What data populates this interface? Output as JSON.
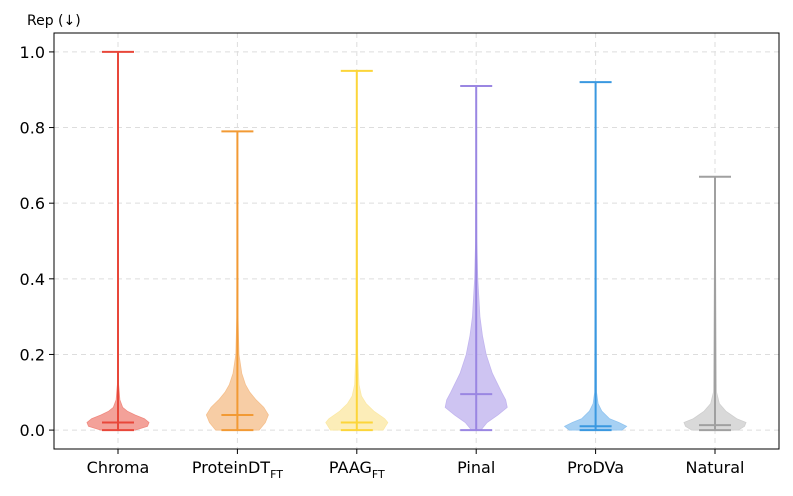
{
  "chart_data": {
    "type": "violin",
    "title": "",
    "ylabel": "Rep (↓)",
    "xlabel": "",
    "ylim": [
      -0.05,
      1.05
    ],
    "yticks": [
      0.0,
      0.2,
      0.4,
      0.6,
      0.8,
      1.0
    ],
    "ytick_labels": [
      "0.0",
      "0.2",
      "0.4",
      "0.6",
      "0.8",
      "1.0"
    ],
    "grid": true,
    "categories": [
      {
        "base": "Chroma",
        "sub": ""
      },
      {
        "base": "ProteinDT",
        "sub": "FT"
      },
      {
        "base": "PAAG",
        "sub": "FT"
      },
      {
        "base": "Pinal",
        "sub": ""
      },
      {
        "base": "ProDVa",
        "sub": ""
      },
      {
        "base": "Natural",
        "sub": ""
      }
    ],
    "series": [
      {
        "name": "Chroma",
        "color": "#e8473a",
        "fill": "#f08a80",
        "min": 0.0,
        "max": 1.0,
        "median": 0.02,
        "profile": [
          [
            0.0,
            0.55
          ],
          [
            0.01,
            0.95
          ],
          [
            0.02,
            1.0
          ],
          [
            0.03,
            0.85
          ],
          [
            0.04,
            0.55
          ],
          [
            0.05,
            0.3
          ],
          [
            0.06,
            0.15
          ],
          [
            0.08,
            0.06
          ],
          [
            0.12,
            0.02
          ],
          [
            1.0,
            0.0
          ]
        ]
      },
      {
        "name": "ProteinDT_FT",
        "color": "#f29a34",
        "fill": "#f5c08e",
        "min": 0.0,
        "max": 0.79,
        "median": 0.04,
        "profile": [
          [
            0.0,
            0.7
          ],
          [
            0.02,
            0.9
          ],
          [
            0.04,
            1.0
          ],
          [
            0.06,
            0.85
          ],
          [
            0.08,
            0.6
          ],
          [
            0.1,
            0.4
          ],
          [
            0.12,
            0.26
          ],
          [
            0.15,
            0.14
          ],
          [
            0.2,
            0.05
          ],
          [
            0.3,
            0.02
          ],
          [
            0.79,
            0.0
          ]
        ]
      },
      {
        "name": "PAAG_FT",
        "color": "#fcd53a",
        "fill": "#fbe9a6",
        "min": 0.0,
        "max": 0.95,
        "median": 0.02,
        "profile": [
          [
            0.0,
            0.85
          ],
          [
            0.02,
            1.0
          ],
          [
            0.03,
            0.9
          ],
          [
            0.05,
            0.55
          ],
          [
            0.07,
            0.3
          ],
          [
            0.09,
            0.15
          ],
          [
            0.12,
            0.07
          ],
          [
            0.2,
            0.03
          ],
          [
            0.95,
            0.0
          ]
        ]
      },
      {
        "name": "Pinal",
        "color": "#9a86e2",
        "fill": "#c2b5ef",
        "min": 0.0,
        "max": 0.91,
        "median": 0.095,
        "profile": [
          [
            0.0,
            0.15
          ],
          [
            0.02,
            0.35
          ],
          [
            0.04,
            0.7
          ],
          [
            0.06,
            1.0
          ],
          [
            0.08,
            0.95
          ],
          [
            0.1,
            0.82
          ],
          [
            0.12,
            0.7
          ],
          [
            0.15,
            0.52
          ],
          [
            0.2,
            0.32
          ],
          [
            0.25,
            0.2
          ],
          [
            0.3,
            0.12
          ],
          [
            0.4,
            0.05
          ],
          [
            0.5,
            0.02
          ],
          [
            0.91,
            0.0
          ]
        ]
      },
      {
        "name": "ProDVa",
        "color": "#3a98e0",
        "fill": "#90c4f0",
        "min": 0.0,
        "max": 0.92,
        "median": 0.01,
        "profile": [
          [
            0.0,
            0.85
          ],
          [
            0.01,
            1.0
          ],
          [
            0.02,
            0.75
          ],
          [
            0.03,
            0.45
          ],
          [
            0.05,
            0.2
          ],
          [
            0.07,
            0.08
          ],
          [
            0.1,
            0.03
          ],
          [
            0.92,
            0.0
          ]
        ]
      },
      {
        "name": "Natural",
        "color": "#a0a0a0",
        "fill": "#cfcfcf",
        "min": 0.0,
        "max": 0.67,
        "median": 0.013,
        "profile": [
          [
            0.0,
            0.75
          ],
          [
            0.01,
            0.95
          ],
          [
            0.02,
            1.0
          ],
          [
            0.03,
            0.7
          ],
          [
            0.05,
            0.35
          ],
          [
            0.07,
            0.14
          ],
          [
            0.1,
            0.05
          ],
          [
            0.67,
            0.0
          ]
        ]
      }
    ]
  }
}
